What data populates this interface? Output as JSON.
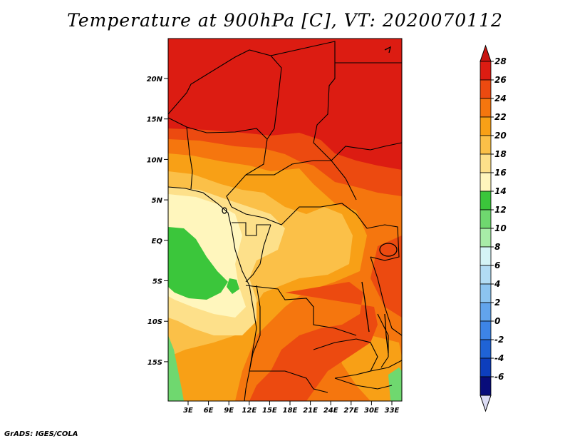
{
  "title": "Temperature at 900hPa [C], VT: 2020070112",
  "footer": "GrADS: IGES/COLA",
  "lat_labels": [
    "20N",
    "15N",
    "10N",
    "5N",
    "EQ",
    "5S",
    "10S",
    "15S"
  ],
  "lon_labels": [
    "3E",
    "6E",
    "9E",
    "12E",
    "15E",
    "18E",
    "21E",
    "24E",
    "27E",
    "30E",
    "33E"
  ],
  "colorbar": {
    "levels": [
      "28",
      "26",
      "24",
      "22",
      "20",
      "18",
      "16",
      "14",
      "12",
      "10",
      "8",
      "6",
      "4",
      "2",
      "0",
      "-2",
      "-4",
      "-6"
    ],
    "colors": [
      "#dc1c12",
      "#ec4a10",
      "#f5760e",
      "#f8a016",
      "#fbc048",
      "#fde08a",
      "#fff6bd",
      "#3bc63b",
      "#6fd86f",
      "#a8eca8",
      "#d4f4f6",
      "#b2dcf4",
      "#8cc4f0",
      "#62a4ec",
      "#3d84e6",
      "#1f63d6",
      "#0d3ebd",
      "#080c7a"
    ],
    "top_arrow_color": "#c81410",
    "bottom_arrow_color": "#dcdcf4"
  },
  "map_colors": {
    "hot": "#dc1c12",
    "warm": "#ec4a10",
    "orange": "#f5760e",
    "amber": "#f8a016",
    "light_orange": "#fbc048",
    "pale": "#fde08a",
    "cream": "#fff6bd",
    "green": "#3bc63b",
    "light_green": "#6fd86f"
  }
}
